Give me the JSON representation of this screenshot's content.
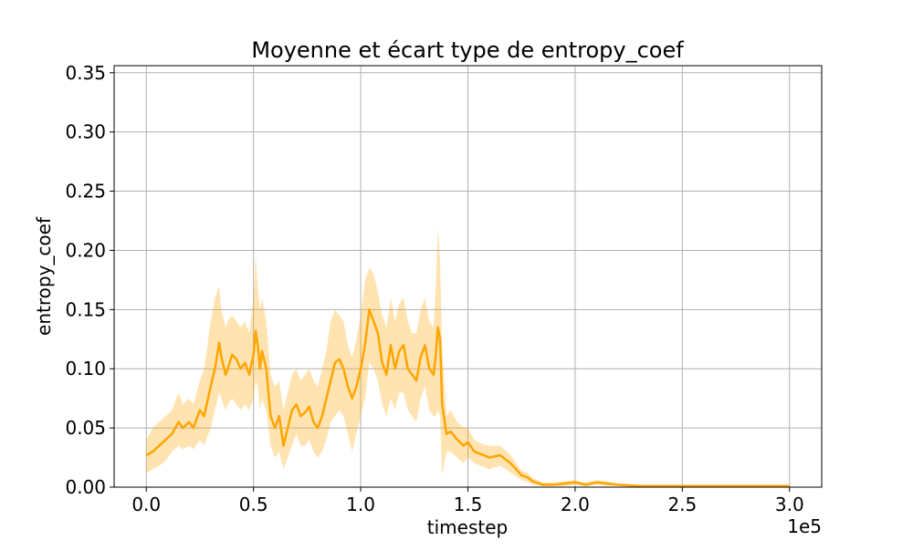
{
  "chart_data": {
    "type": "line",
    "title": "Moyenne et écart type de entropy_coef",
    "xlabel": "timestep",
    "ylabel": "entropy_coef",
    "x_offset_label": "1e5",
    "xlim": [
      -0.15,
      3.15
    ],
    "ylim": [
      0.0,
      0.356
    ],
    "x_ticks": [
      0.0,
      0.5,
      1.0,
      1.5,
      2.0,
      2.5,
      3.0
    ],
    "x_tick_labels": [
      "0.0",
      "0.5",
      "1.0",
      "1.5",
      "2.0",
      "2.5",
      "3.0"
    ],
    "y_ticks": [
      0.0,
      0.05,
      0.1,
      0.15,
      0.2,
      0.25,
      0.3,
      0.35
    ],
    "y_tick_labels": [
      "0.00",
      "0.05",
      "0.10",
      "0.15",
      "0.20",
      "0.25",
      "0.30",
      "0.35"
    ],
    "grid": true,
    "colors": {
      "line": "#ffa500",
      "band": "#ffa500"
    },
    "series": [
      {
        "name": "mean",
        "x": [
          0.0,
          0.03,
          0.06,
          0.09,
          0.12,
          0.15,
          0.17,
          0.2,
          0.22,
          0.25,
          0.27,
          0.3,
          0.32,
          0.34,
          0.35,
          0.37,
          0.38,
          0.4,
          0.42,
          0.44,
          0.46,
          0.48,
          0.5,
          0.51,
          0.52,
          0.53,
          0.54,
          0.56,
          0.58,
          0.6,
          0.62,
          0.64,
          0.66,
          0.68,
          0.7,
          0.72,
          0.74,
          0.76,
          0.78,
          0.8,
          0.82,
          0.84,
          0.86,
          0.88,
          0.9,
          0.92,
          0.94,
          0.96,
          0.98,
          1.0,
          1.02,
          1.04,
          1.06,
          1.08,
          1.1,
          1.12,
          1.14,
          1.16,
          1.18,
          1.2,
          1.22,
          1.24,
          1.26,
          1.28,
          1.3,
          1.32,
          1.34,
          1.35,
          1.36,
          1.37,
          1.38,
          1.4,
          1.42,
          1.45,
          1.48,
          1.5,
          1.53,
          1.56,
          1.6,
          1.65,
          1.7,
          1.75,
          1.78,
          1.8,
          1.85,
          1.9,
          1.95,
          2.0,
          2.05,
          2.1,
          2.15,
          2.2,
          2.3,
          2.4,
          2.5,
          2.6,
          2.7,
          2.8,
          2.9,
          3.0
        ],
        "values": [
          0.027,
          0.03,
          0.035,
          0.04,
          0.045,
          0.055,
          0.05,
          0.055,
          0.05,
          0.065,
          0.06,
          0.085,
          0.1,
          0.122,
          0.11,
          0.095,
          0.1,
          0.112,
          0.108,
          0.1,
          0.105,
          0.095,
          0.112,
          0.132,
          0.12,
          0.1,
          0.115,
          0.1,
          0.06,
          0.05,
          0.06,
          0.035,
          0.05,
          0.065,
          0.07,
          0.06,
          0.063,
          0.068,
          0.055,
          0.05,
          0.06,
          0.075,
          0.09,
          0.105,
          0.108,
          0.1,
          0.085,
          0.075,
          0.085,
          0.1,
          0.12,
          0.15,
          0.14,
          0.13,
          0.105,
          0.095,
          0.12,
          0.1,
          0.115,
          0.12,
          0.1,
          0.095,
          0.09,
          0.11,
          0.12,
          0.1,
          0.095,
          0.112,
          0.135,
          0.125,
          0.07,
          0.045,
          0.047,
          0.04,
          0.035,
          0.038,
          0.03,
          0.028,
          0.025,
          0.027,
          0.02,
          0.01,
          0.008,
          0.005,
          0.002,
          0.002,
          0.003,
          0.004,
          0.002,
          0.004,
          0.003,
          0.002,
          0.001,
          0.001,
          0.001,
          0.001,
          0.001,
          0.001,
          0.001,
          0.001
        ]
      },
      {
        "name": "std_band",
        "x": [
          0.0,
          0.03,
          0.06,
          0.09,
          0.12,
          0.15,
          0.17,
          0.2,
          0.22,
          0.25,
          0.27,
          0.3,
          0.32,
          0.34,
          0.35,
          0.37,
          0.38,
          0.4,
          0.42,
          0.44,
          0.46,
          0.48,
          0.5,
          0.51,
          0.52,
          0.53,
          0.54,
          0.56,
          0.58,
          0.6,
          0.62,
          0.64,
          0.66,
          0.68,
          0.7,
          0.72,
          0.74,
          0.76,
          0.78,
          0.8,
          0.82,
          0.84,
          0.86,
          0.88,
          0.9,
          0.92,
          0.94,
          0.96,
          0.98,
          1.0,
          1.02,
          1.04,
          1.06,
          1.08,
          1.1,
          1.12,
          1.14,
          1.16,
          1.18,
          1.2,
          1.22,
          1.24,
          1.26,
          1.28,
          1.3,
          1.32,
          1.34,
          1.35,
          1.36,
          1.37,
          1.38,
          1.4,
          1.42,
          1.45,
          1.48,
          1.5,
          1.53,
          1.56,
          1.6,
          1.65,
          1.7,
          1.75,
          1.78,
          1.8,
          1.85,
          1.9,
          1.95,
          2.0,
          2.05,
          2.1,
          2.15,
          2.2,
          2.3,
          2.4,
          2.5,
          2.6,
          2.7,
          2.8,
          2.9,
          3.0
        ],
        "upper": [
          0.04,
          0.05,
          0.055,
          0.06,
          0.065,
          0.08,
          0.07,
          0.075,
          0.07,
          0.09,
          0.1,
          0.14,
          0.16,
          0.17,
          0.15,
          0.135,
          0.14,
          0.145,
          0.14,
          0.135,
          0.14,
          0.13,
          0.16,
          0.195,
          0.17,
          0.15,
          0.16,
          0.14,
          0.095,
          0.085,
          0.09,
          0.065,
          0.08,
          0.095,
          0.1,
          0.09,
          0.095,
          0.1,
          0.09,
          0.085,
          0.1,
          0.115,
          0.14,
          0.15,
          0.145,
          0.14,
          0.12,
          0.11,
          0.125,
          0.145,
          0.175,
          0.185,
          0.18,
          0.165,
          0.145,
          0.135,
          0.16,
          0.14,
          0.155,
          0.16,
          0.14,
          0.13,
          0.13,
          0.15,
          0.16,
          0.14,
          0.135,
          0.17,
          0.22,
          0.19,
          0.12,
          0.06,
          0.065,
          0.055,
          0.05,
          0.05,
          0.04,
          0.037,
          0.035,
          0.035,
          0.027,
          0.014,
          0.012,
          0.008,
          0.004,
          0.004,
          0.005,
          0.006,
          0.004,
          0.006,
          0.005,
          0.003,
          0.002,
          0.002,
          0.002,
          0.002,
          0.002,
          0.002,
          0.002,
          0.002
        ],
        "lower": [
          0.012,
          0.015,
          0.018,
          0.022,
          0.03,
          0.035,
          0.032,
          0.035,
          0.032,
          0.04,
          0.035,
          0.05,
          0.065,
          0.08,
          0.075,
          0.065,
          0.07,
          0.075,
          0.07,
          0.065,
          0.07,
          0.065,
          0.075,
          0.09,
          0.085,
          0.065,
          0.075,
          0.065,
          0.035,
          0.025,
          0.03,
          0.015,
          0.025,
          0.035,
          0.045,
          0.035,
          0.035,
          0.04,
          0.03,
          0.025,
          0.03,
          0.04,
          0.055,
          0.06,
          0.065,
          0.06,
          0.045,
          0.03,
          0.045,
          0.06,
          0.075,
          0.105,
          0.1,
          0.09,
          0.07,
          0.06,
          0.075,
          0.065,
          0.08,
          0.08,
          0.065,
          0.06,
          0.055,
          0.075,
          0.085,
          0.065,
          0.06,
          0.06,
          0.065,
          0.06,
          0.01,
          0.03,
          0.03,
          0.025,
          0.02,
          0.025,
          0.02,
          0.018,
          0.015,
          0.018,
          0.012,
          0.006,
          0.004,
          0.002,
          0.001,
          0.001,
          0.001,
          0.002,
          0.001,
          0.002,
          0.001,
          0.001,
          0.0,
          0.0,
          0.0,
          0.0,
          0.0,
          0.0,
          0.0,
          0.0
        ]
      }
    ]
  }
}
